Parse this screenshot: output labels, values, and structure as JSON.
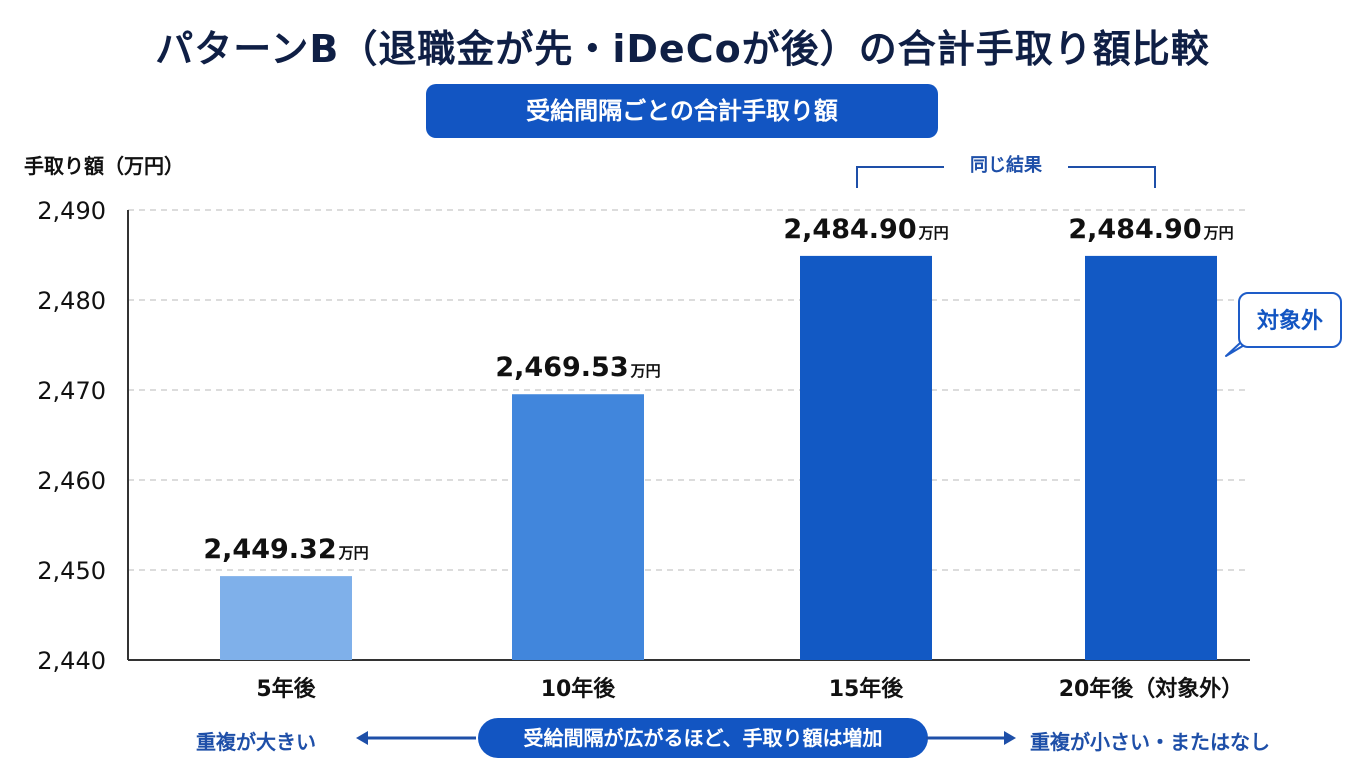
{
  "title": "パターンB（退職金が先・iDeCoが後）の合計手取り額比較",
  "subtitle": "受給間隔ごとの合計手取り額",
  "annotations": {
    "same_result": "同じ結果",
    "callout": "対象外",
    "bottom_left": "重複が大きい",
    "bottom_center": "受給間隔が広がるほど、手取り額は増加",
    "bottom_right": "重複が小さい・またはなし"
  },
  "colors": {
    "title": "#0f1f45",
    "accent": "#1255c2",
    "bar_5": "#7fb0ea",
    "bar_10": "#4186dc",
    "bar_15": "#1259c4",
    "bar_20": "#1259c4",
    "axis": "#333333",
    "grid": "#d0d0d0"
  },
  "chart_data": {
    "type": "bar",
    "title": "受給間隔ごとの合計手取り額",
    "ylabel": "手取り額（万円）",
    "xlabel": "",
    "categories": [
      "5年後",
      "10年後",
      "15年後",
      "20年後（対象外）"
    ],
    "values": [
      2449.32,
      2469.53,
      2484.9,
      2484.9
    ],
    "value_labels": [
      "2,449.32",
      "2,469.53",
      "2,484.90",
      "2,484.90"
    ],
    "value_unit": "万円",
    "ylim": [
      2440,
      2490
    ],
    "yticks": [
      2440,
      2450,
      2460,
      2470,
      2480,
      2490
    ],
    "ytick_labels": [
      "2,440",
      "2,450",
      "2,460",
      "2,470",
      "2,480",
      "2,490"
    ],
    "grid": true,
    "grid_style": "dashed"
  }
}
